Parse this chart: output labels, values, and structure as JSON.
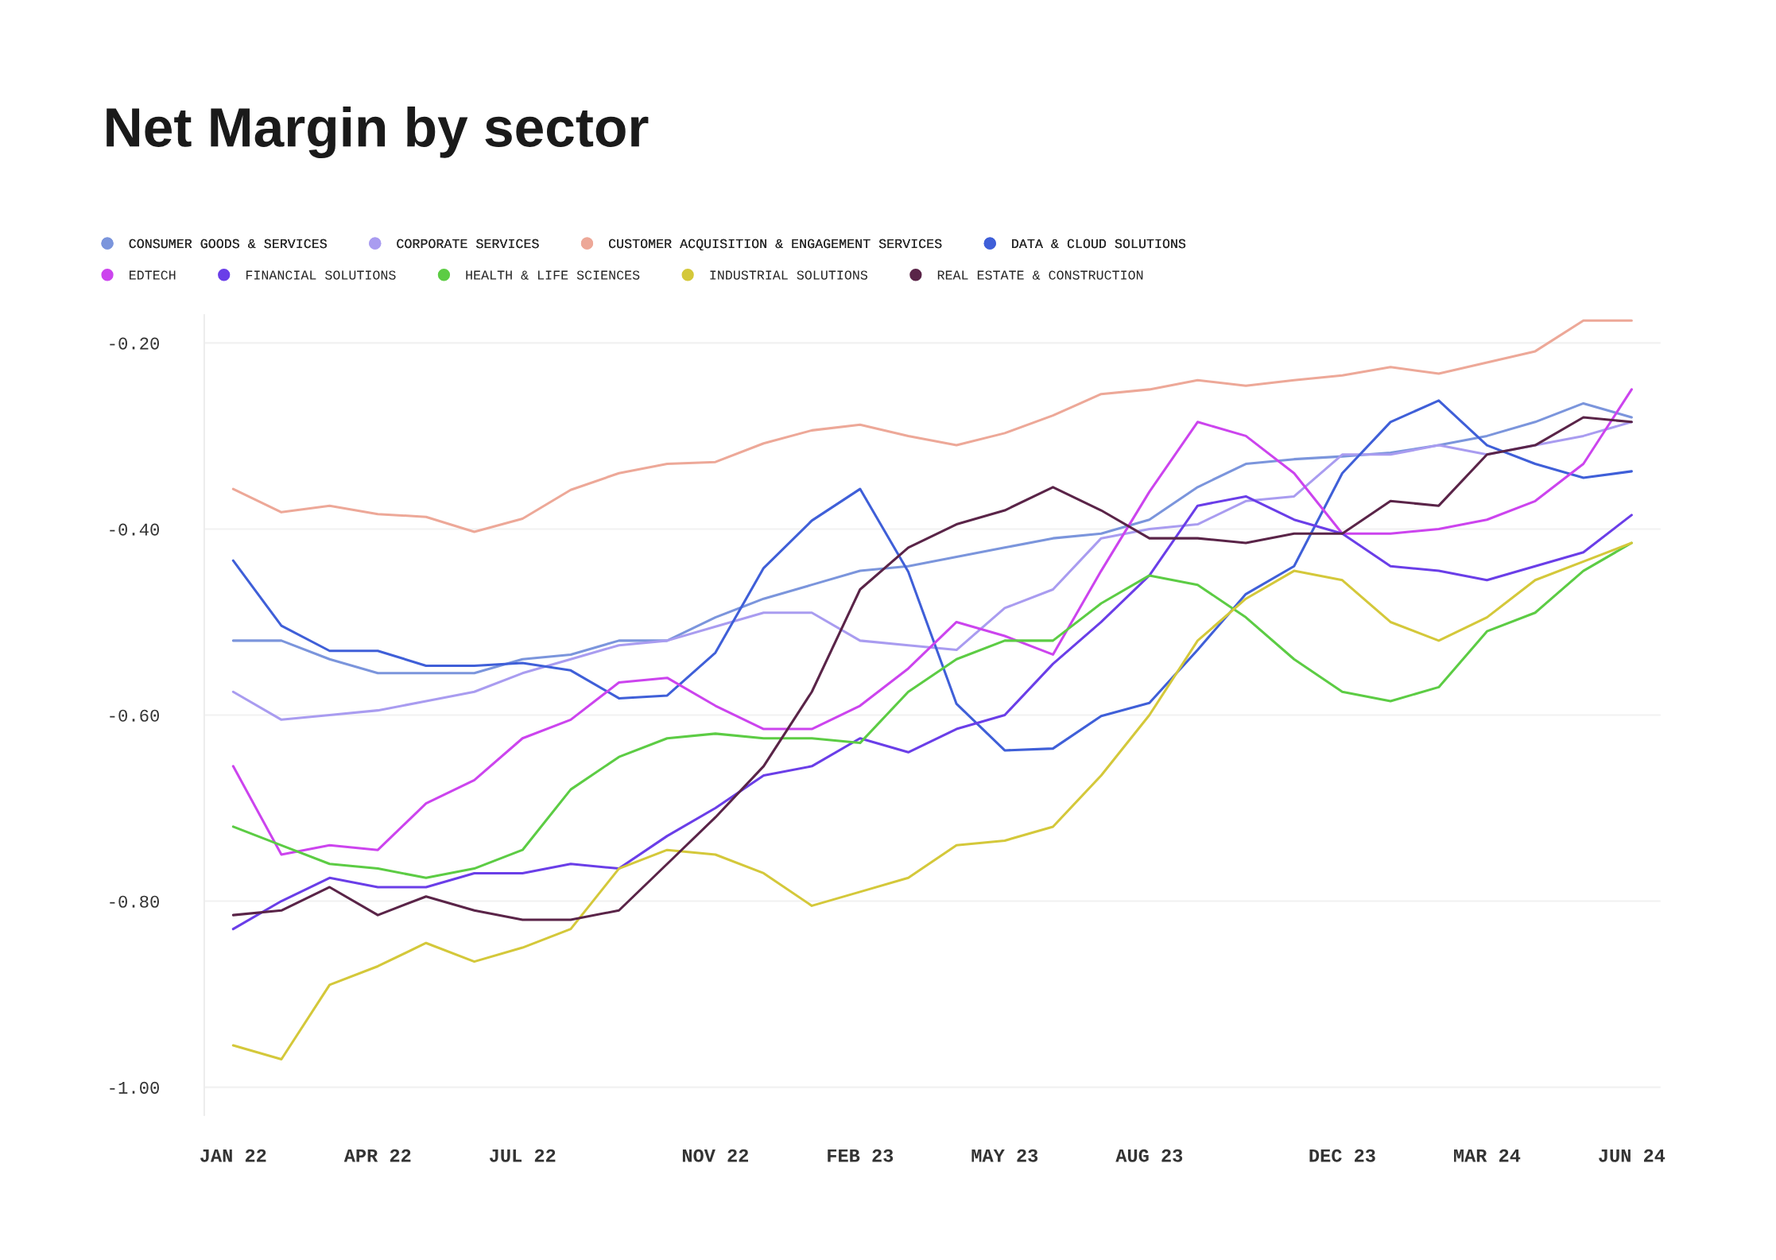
{
  "chart_data": {
    "type": "line",
    "title": "Net Margin by sector",
    "categories": [
      "JAN 22",
      null,
      null,
      "APR 22",
      null,
      null,
      "JUL 22",
      null,
      null,
      null,
      "NOV 22",
      null,
      null,
      "FEB 23",
      null,
      null,
      "MAY 23",
      null,
      null,
      "AUG 23",
      null,
      null,
      null,
      "DEC 23",
      null,
      null,
      "MAR 24",
      null,
      null,
      "JUN 24"
    ],
    "ylim": [
      -1.03,
      -0.17
    ],
    "yticks": [
      {
        "value": -0.2,
        "label": "-0.20"
      },
      {
        "value": -0.4,
        "label": "-0.40"
      },
      {
        "value": -0.6,
        "label": "-0.60"
      },
      {
        "value": -0.8,
        "label": "-0.80"
      },
      {
        "value": -1.0,
        "label": "-1.00"
      }
    ],
    "grid": "y",
    "legend": "top",
    "marker": "none",
    "line_style": "solid",
    "series": [
      {
        "name": "CONSUMER GOODS & SERVICES",
        "color": "#7b95dc",
        "values": [
          -0.52,
          -0.52,
          -0.54,
          -0.555,
          -0.555,
          -0.555,
          -0.54,
          -0.535,
          -0.52,
          -0.52,
          -0.495,
          -0.475,
          -0.46,
          -0.445,
          -0.44,
          -0.43,
          -0.42,
          -0.41,
          -0.405,
          -0.39,
          -0.355,
          -0.33,
          -0.325,
          -0.322,
          -0.318,
          -0.31,
          -0.3,
          -0.285,
          -0.265,
          -0.28
        ]
      },
      {
        "name": "CORPORATE SERVICES",
        "color": "#a99cf0",
        "values": [
          -0.575,
          -0.605,
          -0.6,
          -0.595,
          -0.585,
          -0.575,
          -0.555,
          -0.54,
          -0.525,
          -0.52,
          -0.505,
          -0.49,
          -0.49,
          -0.52,
          -0.525,
          -0.53,
          -0.485,
          -0.465,
          -0.41,
          -0.4,
          -0.395,
          -0.37,
          -0.365,
          -0.32,
          -0.32,
          -0.31,
          -0.32,
          -0.31,
          -0.3,
          -0.285
        ]
      },
      {
        "name": "CUSTOMER ACQUISITION & ENGAGEMENT SERVICES",
        "color": "#eda898",
        "values": [
          -0.357,
          -0.382,
          -0.375,
          -0.384,
          -0.387,
          -0.403,
          -0.389,
          -0.358,
          -0.34,
          -0.33,
          -0.328,
          -0.308,
          -0.294,
          -0.288,
          -0.3,
          -0.31,
          -0.297,
          -0.278,
          -0.255,
          -0.25,
          -0.24,
          -0.246,
          -0.24,
          -0.235,
          -0.226,
          -0.233,
          -0.221,
          -0.209,
          -0.176,
          -0.176
        ]
      },
      {
        "name": "DATA & CLOUD SOLUTIONS",
        "color": "#3f5fd8",
        "values": [
          -0.434,
          -0.504,
          -0.531,
          -0.531,
          -0.547,
          -0.547,
          -0.544,
          -0.552,
          -0.582,
          -0.579,
          -0.533,
          -0.442,
          -0.391,
          -0.357,
          -0.446,
          -0.588,
          -0.638,
          -0.636,
          -0.601,
          -0.587,
          -0.53,
          -0.47,
          -0.44,
          -0.34,
          -0.285,
          -0.262,
          -0.31,
          -0.33,
          -0.345,
          -0.338
        ]
      },
      {
        "name": "EDTECH",
        "color": "#cc44ee",
        "values": [
          -0.655,
          -0.75,
          -0.74,
          -0.745,
          -0.695,
          -0.67,
          -0.625,
          -0.605,
          -0.565,
          -0.56,
          -0.59,
          -0.615,
          -0.615,
          -0.59,
          -0.55,
          -0.5,
          -0.515,
          -0.535,
          -0.445,
          -0.36,
          -0.285,
          -0.3,
          -0.34,
          -0.405,
          -0.405,
          -0.4,
          -0.39,
          -0.37,
          -0.33,
          -0.25
        ]
      },
      {
        "name": "FINANCIAL SOLUTIONS",
        "color": "#6a3ee8",
        "values": [
          -0.83,
          -0.8,
          -0.775,
          -0.785,
          -0.785,
          -0.77,
          -0.77,
          -0.76,
          -0.765,
          -0.73,
          -0.7,
          -0.665,
          -0.655,
          -0.625,
          -0.64,
          -0.615,
          -0.6,
          -0.545,
          -0.5,
          -0.45,
          -0.375,
          -0.365,
          -0.39,
          -0.405,
          -0.44,
          -0.445,
          -0.455,
          -0.44,
          -0.425,
          -0.385
        ]
      },
      {
        "name": "HEALTH & LIFE SCIENCES",
        "color": "#5ccc44",
        "values": [
          -0.72,
          -0.74,
          -0.76,
          -0.765,
          -0.775,
          -0.765,
          -0.745,
          -0.68,
          -0.645,
          -0.625,
          -0.62,
          -0.625,
          -0.625,
          -0.63,
          -0.575,
          -0.54,
          -0.52,
          -0.52,
          -0.48,
          -0.45,
          -0.46,
          -0.495,
          -0.54,
          -0.575,
          -0.585,
          -0.57,
          -0.51,
          -0.49,
          -0.445,
          -0.415
        ]
      },
      {
        "name": "INDUSTRIAL SOLUTIONS",
        "color": "#d4c83a",
        "values": [
          -0.955,
          -0.97,
          -0.89,
          -0.87,
          -0.845,
          -0.865,
          -0.85,
          -0.83,
          -0.765,
          -0.745,
          -0.75,
          -0.77,
          -0.805,
          -0.79,
          -0.775,
          -0.74,
          -0.735,
          -0.72,
          -0.665,
          -0.6,
          -0.52,
          -0.475,
          -0.445,
          -0.455,
          -0.5,
          -0.52,
          -0.495,
          -0.455,
          -0.435,
          -0.415
        ]
      },
      {
        "name": "REAL ESTATE & CONSTRUCTION",
        "color": "#5a2448",
        "values": [
          -0.815,
          -0.81,
          -0.785,
          -0.815,
          -0.795,
          -0.81,
          -0.82,
          -0.82,
          -0.81,
          -0.76,
          -0.71,
          -0.655,
          -0.575,
          -0.465,
          -0.42,
          -0.395,
          -0.38,
          -0.355,
          -0.38,
          -0.41,
          -0.41,
          -0.415,
          -0.405,
          -0.405,
          -0.37,
          -0.375,
          -0.32,
          -0.31,
          -0.28,
          -0.285
        ]
      }
    ]
  }
}
